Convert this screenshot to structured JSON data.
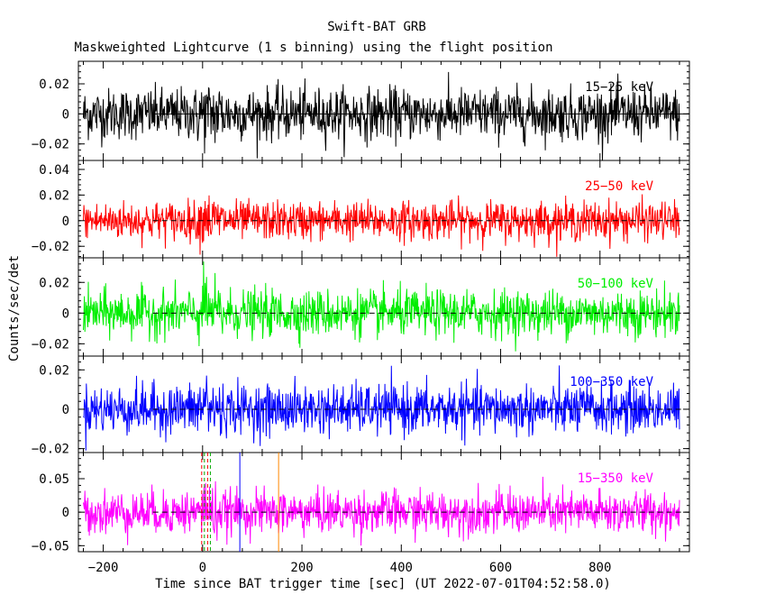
{
  "chart_data": {
    "type": "line",
    "title": "Swift-BAT GRB",
    "subtitle": "Maskweighted Lightcurve (1 s binning) using the flight position",
    "xlabel": "Time since BAT trigger time [sec] (UT 2022-07-01T04:52:58.0)",
    "ylabel": "Counts/sec/det",
    "xlim": [
      -250,
      980
    ],
    "xticks": [
      -200,
      0,
      200,
      400,
      600,
      800
    ],
    "x_range_data": [
      -240,
      960
    ],
    "grid": false,
    "panels": [
      {
        "name": "15-25 keV",
        "label": "15−25 keV",
        "color": "#000000",
        "ylim": [
          -0.031,
          0.035
        ],
        "yticks": [
          -0.02,
          0,
          0.02
        ],
        "yticklabels": [
          "−0.02",
          "0",
          "0.02"
        ],
        "noise_sd": 0.0085,
        "reference_line": 0,
        "reference_style": "solid"
      },
      {
        "name": "25-50 keV",
        "label": "25−50 keV",
        "color": "#ff0000",
        "ylim": [
          -0.029,
          0.047
        ],
        "yticks": [
          -0.02,
          0,
          0.02,
          0.04
        ],
        "yticklabels": [
          "−0.02",
          "0",
          "0.02",
          "0.04"
        ],
        "noise_sd": 0.0075,
        "reference_line": 0,
        "reference_style": "dashed"
      },
      {
        "name": "50-100 keV",
        "label": "50−100 keV",
        "color": "#00ee00",
        "ylim": [
          -0.028,
          0.036
        ],
        "yticks": [
          -0.02,
          0,
          0.02
        ],
        "yticklabels": [
          "−0.02",
          "0",
          "0.02"
        ],
        "noise_sd": 0.0075,
        "reference_line": 0,
        "reference_style": "dashed"
      },
      {
        "name": "100-350 keV",
        "label": "100−350 keV",
        "color": "#0000ff",
        "ylim": [
          -0.022,
          0.027
        ],
        "yticks": [
          -0.02,
          0,
          0.02
        ],
        "yticklabels": [
          "−0.02",
          "0",
          "0.02"
        ],
        "noise_sd": 0.0062,
        "reference_line": 0,
        "reference_style": "dashed"
      },
      {
        "name": "15-350 keV",
        "label": "15−350 keV",
        "color": "#ff00ff",
        "ylim": [
          -0.059,
          0.089
        ],
        "yticks": [
          -0.05,
          0,
          0.05
        ],
        "yticklabels": [
          "−0.05",
          "0",
          "0.05"
        ],
        "noise_sd": 0.016,
        "reference_line": 0,
        "reference_style": "dashed"
      }
    ],
    "markers": [
      {
        "x": 0,
        "color": "#ff0000",
        "style": "dashed",
        "role": "interval start"
      },
      {
        "x": 12,
        "color": "#ff0000",
        "style": "dashed",
        "role": "interval end"
      },
      {
        "x": 0,
        "color": "#00aa00",
        "style": "dashed",
        "role": "interval start"
      },
      {
        "x": 12,
        "color": "#00aa00",
        "style": "dashed",
        "role": "interval end"
      },
      {
        "x": 75,
        "color": "#0000ff",
        "style": "solid"
      },
      {
        "x": 153,
        "color": "#ff8800",
        "style": "solid"
      }
    ]
  }
}
